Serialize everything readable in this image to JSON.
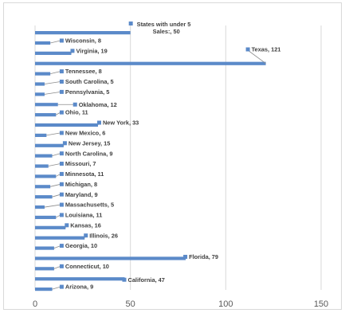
{
  "chart_data": {
    "type": "bar",
    "orientation": "horizontal",
    "xlim": [
      0,
      150
    ],
    "x_ticks": [
      0,
      50,
      100,
      150
    ],
    "grid": true,
    "bar_color": "#5b8ac9",
    "label_color": "#404040",
    "categories": [
      "States with under 5 Sales:",
      "Wisconsin",
      "Virginia",
      "Texas",
      "Tennessee",
      "South Carolina",
      "Pennsylvania",
      "Oklahoma",
      "Ohio",
      "New York",
      "New Mexico",
      "New Jersey",
      "North Carolina",
      "Missouri",
      "Minnesota",
      "Michigan",
      "Maryland",
      "Massachusetts",
      "Louisiana",
      "Kansas",
      "Illinois",
      "Georgia",
      "Florida",
      "Connecticut",
      "California",
      "Arizona"
    ],
    "values": [
      50,
      8,
      19,
      121,
      8,
      5,
      5,
      12,
      11,
      33,
      6,
      15,
      9,
      7,
      11,
      8,
      9,
      5,
      11,
      16,
      26,
      10,
      79,
      10,
      47,
      9
    ],
    "labels": [
      [
        "States with under 5",
        "Sales:, 50"
      ],
      [
        "Wisconsin, 8"
      ],
      [
        "Virginia, 19"
      ],
      [
        "Texas, 121"
      ],
      [
        "Tennessee, 8"
      ],
      [
        "South Carolina, 5"
      ],
      [
        "Pennsylvania, 5"
      ],
      [
        "Oklahoma, 12"
      ],
      [
        "Ohio, 11"
      ],
      [
        "New York, 33"
      ],
      [
        "New Mexico, 6"
      ],
      [
        "New Jersey, 15"
      ],
      [
        "North Carolina, 9"
      ],
      [
        "Missouri, 7"
      ],
      [
        "Minnesota, 11"
      ],
      [
        "Michigan, 8"
      ],
      [
        "Maryland, 9"
      ],
      [
        "Massachusetts, 5"
      ],
      [
        "Louisiana, 11"
      ],
      [
        "Kansas, 16"
      ],
      [
        "Illinois, 26"
      ],
      [
        "Georgia, 10"
      ],
      [
        "Florida, 79"
      ],
      [
        "Connecticut, 10"
      ],
      [
        "California, 47"
      ],
      [
        "Arizona, 9"
      ]
    ]
  }
}
